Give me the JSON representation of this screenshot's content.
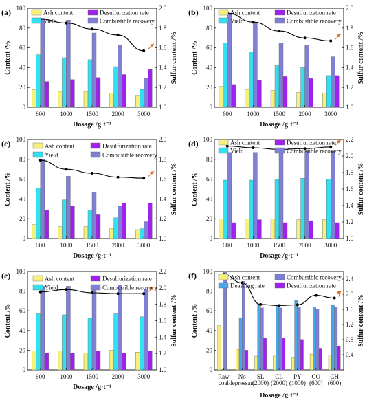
{
  "colors": {
    "ash": "#f7f07a",
    "desulf": "#a020f0",
    "yield": "#33e0f0",
    "combustible": "#7f7fd6",
    "deashing": "#4aa8e8",
    "sulfur_line": "#000000",
    "arrow": "#e07020"
  },
  "chart_data": [
    {
      "panel": "(a)",
      "type": "bar",
      "categories": [
        "600",
        "1000",
        "1500",
        "2000",
        "3000"
      ],
      "xlabel": "Dosage /g·t⁻¹",
      "ylabel": "Content /%",
      "ylabel2": "Sulfur content /%",
      "ylim": [
        0,
        100
      ],
      "yticks": [
        0,
        20,
        40,
        60,
        80,
        100
      ],
      "ylim2": [
        1.0,
        2.0
      ],
      "yticks2": [
        "1.0",
        "1.2",
        "1.4",
        "1.6",
        "1.8",
        "2.0"
      ],
      "series": [
        {
          "name": "Ash content",
          "color": "ash",
          "values": [
            18,
            16,
            16,
            14,
            12
          ]
        },
        {
          "name": "Yield",
          "color": "yield",
          "values": [
            53,
            50,
            48,
            41,
            18
          ]
        },
        {
          "name": "Combustible recovery",
          "color": "combustible",
          "values": [
            90,
            88,
            75,
            63,
            29
          ]
        },
        {
          "name": "Desulfurization rate",
          "color": "desulf",
          "values": [
            26,
            28,
            30,
            33,
            38
          ]
        }
      ],
      "legend": [
        [
          "Ash content",
          "ash"
        ],
        [
          "Desulfurization rate",
          "desulf"
        ],
        [
          "Yield",
          "yield"
        ],
        [
          "Combustible recovery",
          "combustible"
        ]
      ],
      "line": {
        "values": [
          1.89,
          1.85,
          1.79,
          1.73,
          1.57
        ]
      }
    },
    {
      "panel": "(b)",
      "type": "bar",
      "categories": [
        "600",
        "1000",
        "1500",
        "2000",
        "3000"
      ],
      "xlabel": "Dosage /g·t⁻¹",
      "ylabel": "Content /%",
      "ylabel2": "Sulfur content /%",
      "ylim": [
        0,
        100
      ],
      "yticks": [
        0,
        20,
        40,
        60,
        80,
        100
      ],
      "ylim2": [
        1.0,
        2.0
      ],
      "yticks2": [
        "1.0",
        "1.2",
        "1.4",
        "1.6",
        "1.8",
        "2.0"
      ],
      "series": [
        {
          "name": "Ash content",
          "color": "ash",
          "values": [
            21,
            18,
            17,
            15,
            14
          ]
        },
        {
          "name": "Yield",
          "color": "yield",
          "values": [
            65,
            56,
            42,
            40,
            32
          ]
        },
        {
          "name": "Combustible recovery",
          "color": "combustible",
          "values": [
            95,
            85,
            65,
            63,
            51
          ]
        },
        {
          "name": "Desulfurization rate",
          "color": "desulf",
          "values": [
            23,
            27,
            31,
            29,
            32
          ]
        }
      ],
      "legend": [
        [
          "Ash content",
          "ash"
        ],
        [
          "Desulfurization rate",
          "desulf"
        ],
        [
          "Yield",
          "yield"
        ],
        [
          "Combustible recovery",
          "combustible"
        ]
      ],
      "line": {
        "values": [
          1.95,
          1.86,
          1.77,
          1.7,
          1.67
        ]
      }
    },
    {
      "panel": "(c)",
      "type": "bar",
      "categories": [
        "600",
        "1000",
        "1500",
        "2000",
        "3000"
      ],
      "xlabel": "Dosage /g·t⁻¹",
      "ylabel": "Content /%",
      "ylabel2": "Sulfur content /%",
      "ylim": [
        0,
        100
      ],
      "yticks": [
        0,
        20,
        40,
        60,
        80,
        100
      ],
      "ylim2": [
        1.0,
        2.0
      ],
      "yticks2": [
        "1.0",
        "1.2",
        "1.4",
        "1.6",
        "1.8",
        "2.0"
      ],
      "series": [
        {
          "name": "Ash content",
          "color": "ash",
          "values": [
            14,
            12,
            12,
            10,
            9
          ]
        },
        {
          "name": "Yield",
          "color": "yield",
          "values": [
            51,
            39,
            29,
            21,
            10
          ]
        },
        {
          "name": "Combustible recovery",
          "color": "combustible",
          "values": [
            80,
            63,
            47,
            33,
            17
          ]
        },
        {
          "name": "Desulfurization rate",
          "color": "desulf",
          "values": [
            29,
            33,
            24,
            36,
            36
          ]
        }
      ],
      "legend": [
        [
          "Ash content",
          "ash"
        ],
        [
          "Desulfurization rate",
          "desulf"
        ],
        [
          "Yield",
          "yield"
        ],
        [
          "Combustible recovery",
          "combustible"
        ]
      ],
      "line": {
        "values": [
          1.79,
          1.7,
          1.66,
          1.62,
          1.61
        ]
      }
    },
    {
      "panel": "(d)",
      "type": "bar",
      "categories": [
        "600",
        "1000",
        "1500",
        "2000",
        "3000"
      ],
      "xlabel": "Dosage /g·t⁻¹",
      "ylabel": "Content /%",
      "ylabel2": "Sulfur content /%",
      "ylim": [
        0,
        100
      ],
      "yticks": [
        0,
        20,
        40,
        60,
        80,
        100
      ],
      "ylim2": [
        1.0,
        2.2
      ],
      "yticks2": [
        "1.0",
        "1.2",
        "1.4",
        "1.6",
        "1.8",
        "2.0",
        "2.2"
      ],
      "series": [
        {
          "name": "Ash content",
          "color": "ash",
          "values": [
            20,
            20,
            20,
            19,
            19
          ]
        },
        {
          "name": "Yield",
          "color": "yield",
          "values": [
            59,
            59,
            60,
            61,
            60
          ]
        },
        {
          "name": "Combustible recovery",
          "color": "combustible",
          "values": [
            87,
            87,
            87,
            88,
            89
          ]
        },
        {
          "name": "Desulfurization rate",
          "color": "desulf",
          "values": [
            16,
            19,
            16,
            18,
            16
          ]
        }
      ],
      "legend": [
        [
          "Ash content",
          "ash"
        ],
        [
          "Desulfurization rate",
          "desulf"
        ],
        [
          "Yield",
          "yield"
        ],
        [
          "Combustible recovery",
          "combustible"
        ]
      ],
      "line": {
        "values": [
          2.12,
          2.1,
          2.08,
          2.09,
          2.11
        ]
      }
    },
    {
      "panel": "(e)",
      "type": "bar",
      "categories": [
        "600",
        "1000",
        "1500",
        "2000",
        "3000"
      ],
      "xlabel": "Dosage /g·t⁻¹",
      "ylabel": "Content /%",
      "ylabel2": "Sulfur content /%",
      "ylim": [
        0,
        100
      ],
      "yticks": [
        0,
        20,
        40,
        60,
        80,
        100
      ],
      "ylim2": [
        1.0,
        2.2
      ],
      "yticks2": [
        "1.0",
        "1.2",
        "1.4",
        "1.6",
        "1.8",
        "2.0",
        "2.2"
      ],
      "series": [
        {
          "name": "Ash content",
          "color": "ash",
          "values": [
            19,
            19,
            17,
            20,
            18
          ]
        },
        {
          "name": "Yield",
          "color": "yield",
          "values": [
            57,
            56,
            53,
            57,
            54
          ]
        },
        {
          "name": "Combustible recovery",
          "color": "combustible",
          "values": [
            85,
            85,
            82,
            86,
            82
          ]
        },
        {
          "name": "Desulfurization rate",
          "color": "desulf",
          "values": [
            17,
            17,
            19,
            17,
            19
          ]
        }
      ],
      "legend": [
        [
          "Ash content",
          "ash"
        ],
        [
          "Desulfurization rate",
          "desulf"
        ],
        [
          "Yield",
          "yield"
        ],
        [
          "Combustible recovery",
          "combustible"
        ]
      ],
      "line": {
        "values": [
          1.95,
          1.98,
          1.94,
          1.93,
          1.93
        ]
      }
    },
    {
      "panel": "(f)",
      "type": "bar",
      "categories": [
        "Raw\ncoal",
        "No\ndepressant",
        "SL\n(2000)",
        "CL\n(2000)",
        "PY\n(1000)",
        "CO\n(600)",
        "CH\n(600)"
      ],
      "xlabel": "Dosage /g·t⁻¹",
      "ylabel": "Content /%",
      "ylabel2": "Sulfur content /%",
      "ylim": [
        0,
        100
      ],
      "yticks": [
        0,
        20,
        40,
        60,
        80,
        100
      ],
      "ylim2": [
        0.0,
        2.6
      ],
      "yticks2": [
        "0.4",
        "0.8",
        "1.2",
        "1.6",
        "2.0",
        "2.4"
      ],
      "yticks2_values": [
        0.4,
        0.8,
        1.2,
        1.6,
        2.0,
        2.4
      ],
      "series": [
        {
          "name": "Ash content",
          "color": "ash",
          "values": [
            45,
            21,
            14,
            14,
            12,
            16,
            15
          ]
        },
        {
          "name": "Deashing rate",
          "color": "deashing",
          "values": [
            0,
            53,
            67,
            66,
            71,
            64,
            66
          ]
        },
        {
          "name": "Combustible recovery",
          "color": "combustible",
          "values": [
            100,
            90,
            63,
            63,
            64,
            62,
            64
          ]
        },
        {
          "name": "Desulfurization rate",
          "color": "desulf",
          "values": [
            0,
            20,
            32,
            32,
            31,
            22,
            24
          ]
        }
      ],
      "legend": [
        [
          "Ash content",
          "ash"
        ],
        [
          "Combustible recovery",
          "combustible"
        ],
        [
          "Deashing rate",
          "deashing"
        ],
        [
          "Desulfurization rate",
          "desulf"
        ]
      ],
      "line": {
        "values": [
          2.52,
          2.3,
          1.73,
          1.7,
          1.72,
          1.97,
          1.9
        ]
      }
    }
  ]
}
